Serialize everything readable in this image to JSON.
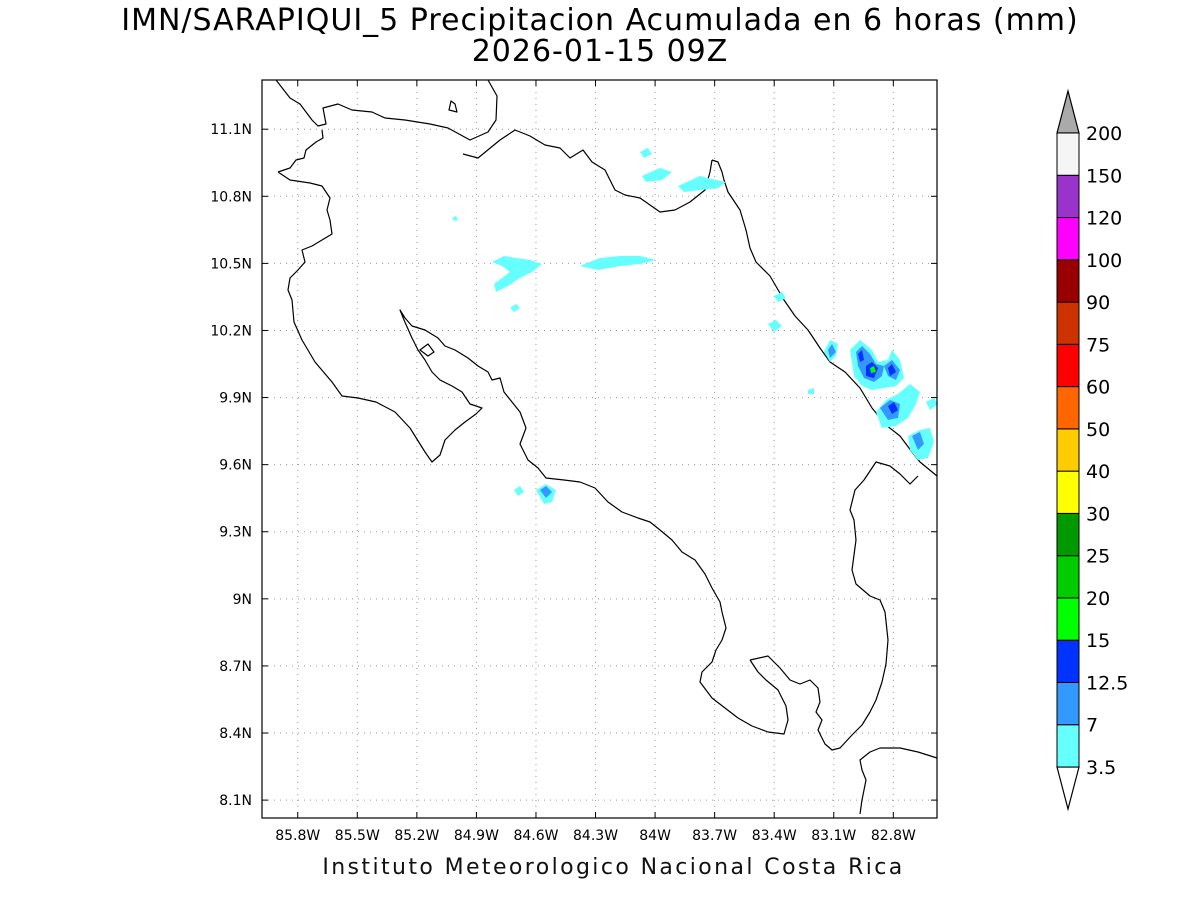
{
  "header": {
    "title": "IMN/SARAPIQUI_5 Precipitacion Acumulada en 6 horas (mm)",
    "subtitle": "2026-01-15 09Z"
  },
  "footer": {
    "credit": "Instituto Meteorologico Nacional Costa Rica"
  },
  "map": {
    "lat_ticks": [
      "11.1N",
      "10.8N",
      "10.5N",
      "10.2N",
      "9.9N",
      "9.6N",
      "9.3N",
      "9N",
      "8.7N",
      "8.4N",
      "8.1N"
    ],
    "lon_ticks": [
      "85.8W",
      "85.5W",
      "85.2W",
      "84.9W",
      "84.6W",
      "84.3W",
      "84W",
      "83.7W",
      "83.4W",
      "83.1W",
      "82.8W"
    ],
    "extent": {
      "lon_min": -85.98,
      "lon_max": -82.58,
      "lat_min": 8.02,
      "lat_max": 11.32
    },
    "grid": true,
    "coastline_color": "#000000"
  },
  "colorbar": {
    "labels": [
      "3.5",
      "7",
      "12.5",
      "15",
      "20",
      "25",
      "30",
      "40",
      "50",
      "60",
      "75",
      "90",
      "100",
      "120",
      "150",
      "200"
    ],
    "colors": [
      "#66ffff",
      "#3399ff",
      "#0033ff",
      "#00ff00",
      "#00cc00",
      "#009900",
      "#ffff00",
      "#ffcc00",
      "#ff6600",
      "#ff0000",
      "#cc3300",
      "#990000",
      "#ff00ff",
      "#9933cc",
      "#f5f5f5"
    ],
    "over_color": "#aaaaaa",
    "under_color": "#ffffff"
  }
}
